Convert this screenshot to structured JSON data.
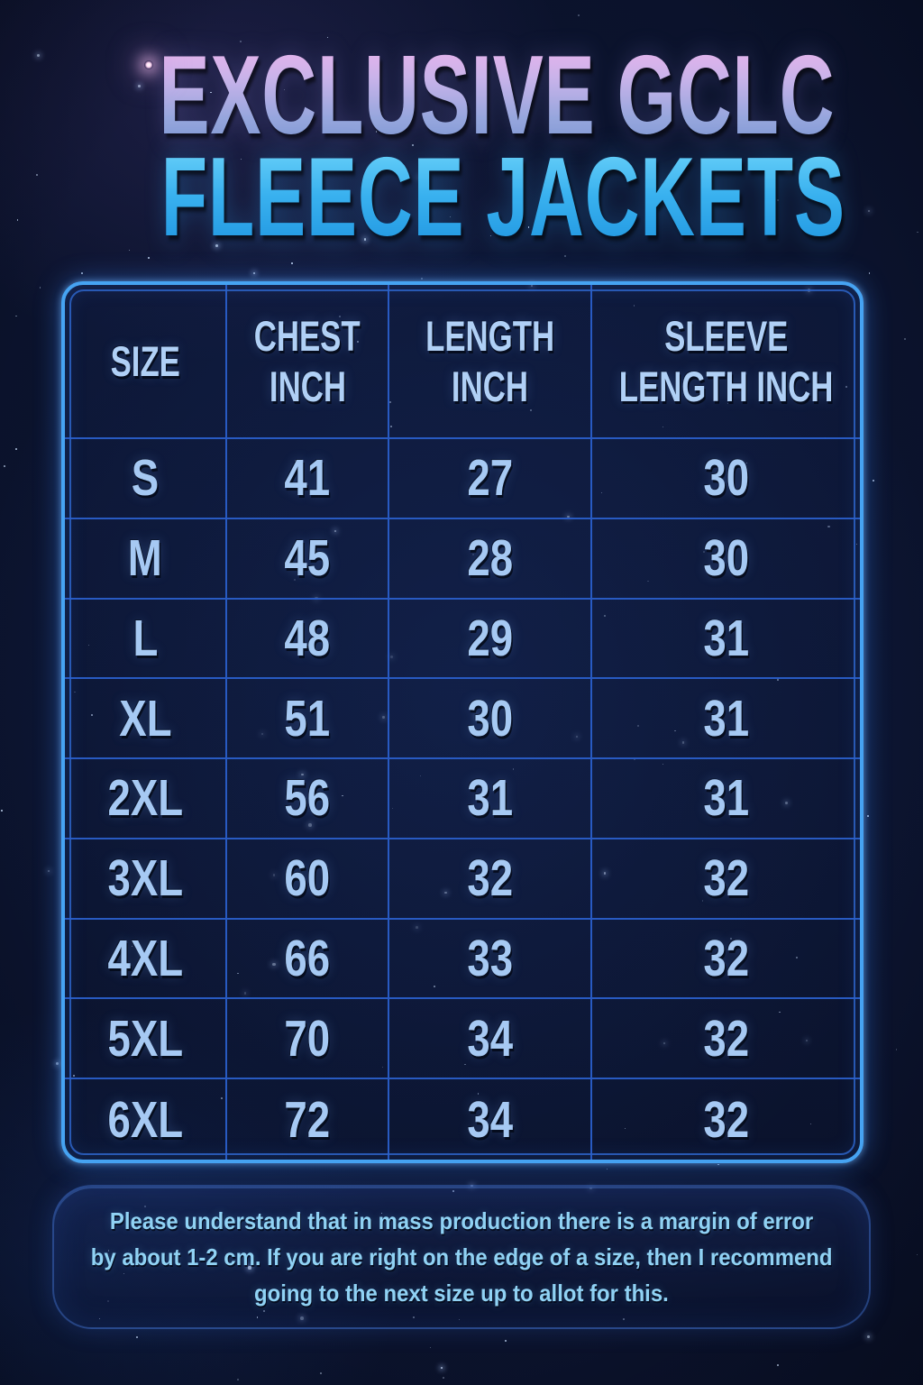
{
  "title": {
    "line1": "EXCLUSIVE GCLC",
    "line2": "FLEECE JACKETS"
  },
  "table": {
    "headers": [
      {
        "line1": "SIZE",
        "line2": ""
      },
      {
        "line1": "CHEST",
        "line2": "INCH"
      },
      {
        "line1": "LENGTH",
        "line2": "INCH"
      },
      {
        "line1": "SLEEVE",
        "line2": "LENGTH INCH"
      }
    ],
    "rows": [
      [
        "S",
        "41",
        "27",
        "30"
      ],
      [
        "M",
        "45",
        "28",
        "30"
      ],
      [
        "L",
        "48",
        "29",
        "31"
      ],
      [
        "XL",
        "51",
        "30",
        "31"
      ],
      [
        "2XL",
        "56",
        "31",
        "31"
      ],
      [
        "3XL",
        "60",
        "32",
        "32"
      ],
      [
        "4XL",
        "66",
        "33",
        "32"
      ],
      [
        "5XL",
        "70",
        "34",
        "32"
      ],
      [
        "6XL",
        "72",
        "34",
        "32"
      ]
    ]
  },
  "note": {
    "lines": [
      "Please understand that in mass production there is a margin of error",
      "by about 1-2 cm. If you are right on the edge of a size, then I recommend",
      "going to the next size up to allot for this."
    ]
  },
  "colors": {
    "background": "#0a1129",
    "table_border": "#46a3f2",
    "grid_line": "#2a5ec9",
    "header_text": "#b0d0f6",
    "cell_text": "#a6c9f3",
    "note_text": "#90d2f4",
    "title_top": "#eeb3ec",
    "title_bottom": "#7d96d2",
    "title_cyan": "#39b1ef"
  },
  "chart_data": {
    "type": "table",
    "title": "EXCLUSIVE GCLC FLEECE JACKETS",
    "columns": [
      "SIZE",
      "CHEST INCH",
      "LENGTH INCH",
      "SLEEVE LENGTH INCH"
    ],
    "rows": [
      [
        "S",
        41,
        27,
        30
      ],
      [
        "M",
        45,
        28,
        30
      ],
      [
        "L",
        48,
        29,
        31
      ],
      [
        "XL",
        51,
        30,
        31
      ],
      [
        "2XL",
        56,
        31,
        31
      ],
      [
        "3XL",
        60,
        32,
        32
      ],
      [
        "4XL",
        66,
        33,
        32
      ],
      [
        "5XL",
        70,
        34,
        32
      ],
      [
        "6XL",
        72,
        34,
        32
      ]
    ],
    "footnote": "Please understand that in mass production there is a margin of error by about 1-2 cm. If you are right on the edge of a size, then I recommend going to the next size up to allot for this."
  }
}
